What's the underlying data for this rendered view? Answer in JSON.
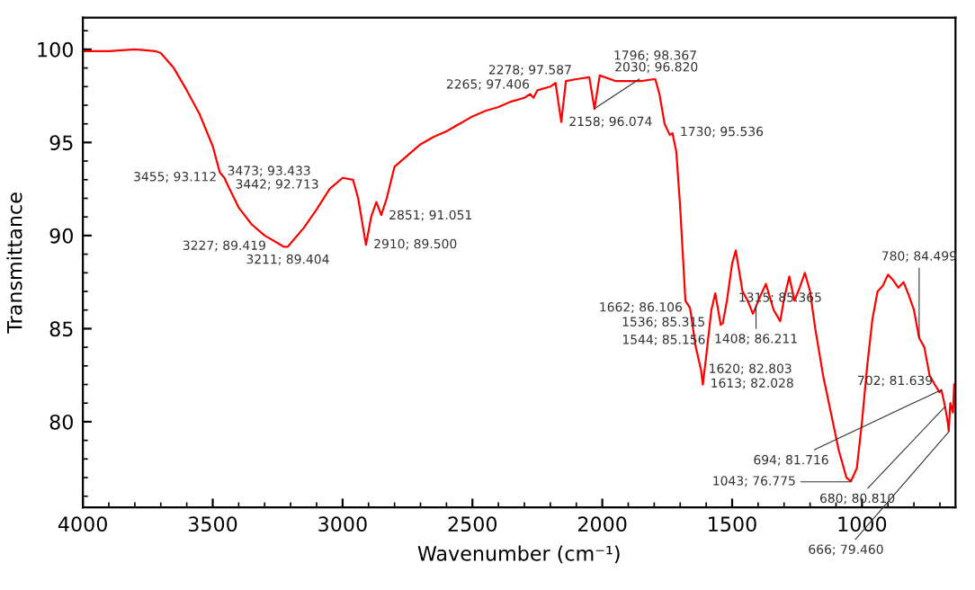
{
  "chart_data": {
    "type": "line",
    "xlabel": "Wavenumber (cm⁻¹)",
    "ylabel": "Transmittance",
    "x": [
      4000,
      3900,
      3800,
      3720,
      3700,
      3650,
      3600,
      3550,
      3500,
      3473,
      3455,
      3442,
      3400,
      3350,
      3300,
      3250,
      3227,
      3211,
      3150,
      3100,
      3050,
      3000,
      2960,
      2940,
      2910,
      2890,
      2870,
      2851,
      2830,
      2800,
      2750,
      2700,
      2650,
      2600,
      2550,
      2500,
      2450,
      2400,
      2350,
      2300,
      2278,
      2265,
      2250,
      2200,
      2180,
      2158,
      2140,
      2100,
      2050,
      2030,
      2010,
      1950,
      1900,
      1850,
      1800,
      1796,
      1780,
      1760,
      1740,
      1730,
      1715,
      1700,
      1680,
      1662,
      1640,
      1620,
      1613,
      1600,
      1580,
      1565,
      1544,
      1536,
      1520,
      1500,
      1486,
      1460,
      1440,
      1420,
      1408,
      1390,
      1370,
      1340,
      1315,
      1300,
      1280,
      1260,
      1240,
      1220,
      1200,
      1180,
      1150,
      1120,
      1090,
      1060,
      1043,
      1020,
      1000,
      980,
      960,
      940,
      920,
      900,
      880,
      860,
      840,
      820,
      800,
      780,
      760,
      740,
      720,
      702,
      694,
      680,
      670,
      666,
      660,
      650,
      645
    ],
    "series": [
      {
        "color": "#ff0000",
        "values": [
          99.9,
          99.9,
          100.0,
          99.9,
          99.8,
          99.0,
          97.8,
          96.5,
          94.8,
          93.4,
          93.1,
          92.7,
          91.5,
          90.6,
          90.0,
          89.6,
          89.4,
          89.4,
          90.4,
          91.4,
          92.5,
          93.1,
          93.0,
          92.0,
          89.5,
          91.0,
          91.8,
          91.1,
          92.0,
          93.7,
          94.3,
          94.9,
          95.3,
          95.6,
          96.0,
          96.4,
          96.7,
          96.9,
          97.2,
          97.4,
          97.6,
          97.4,
          97.8,
          98.0,
          98.2,
          96.1,
          98.3,
          98.4,
          98.5,
          96.8,
          98.6,
          98.3,
          98.3,
          98.3,
          98.4,
          98.4,
          97.6,
          96.0,
          95.4,
          95.5,
          94.5,
          91.5,
          86.5,
          86.1,
          84.0,
          82.8,
          82.0,
          83.5,
          86.0,
          86.9,
          85.2,
          85.3,
          86.5,
          88.5,
          89.2,
          87.0,
          86.5,
          85.8,
          86.2,
          86.8,
          87.4,
          86.0,
          85.4,
          86.6,
          87.8,
          86.5,
          87.2,
          88.0,
          87.0,
          85.0,
          82.5,
          80.5,
          78.5,
          77.0,
          76.8,
          77.5,
          80.0,
          83.0,
          85.5,
          87.0,
          87.3,
          87.9,
          87.6,
          87.2,
          87.5,
          86.8,
          86.0,
          84.5,
          84.0,
          82.5,
          82.0,
          81.6,
          81.7,
          80.8,
          80.0,
          79.5,
          81.0,
          80.5,
          82.0
        ]
      }
    ],
    "xlim": [
      4000,
      640
    ],
    "ylim": [
      75.4,
      101.7
    ],
    "xticks": [
      4000,
      3500,
      3000,
      2500,
      2000,
      1500,
      1000
    ],
    "yticks": [
      80,
      85,
      90,
      95,
      100
    ],
    "grid": false,
    "legend": false,
    "marker": "none",
    "line_style": "solid",
    "annotations": [
      {
        "text": "3473; 93.433",
        "x": 3473,
        "y": 93.433
      },
      {
        "text": "3455; 93.112",
        "x": 3455,
        "y": 93.112
      },
      {
        "text": "3442; 92.713",
        "x": 3442,
        "y": 92.713
      },
      {
        "text": "3211; 89.404",
        "x": 3211,
        "y": 89.404
      },
      {
        "text": "3227; 89.419",
        "x": 3227,
        "y": 89.419
      },
      {
        "text": "2910; 89.500",
        "x": 2910,
        "y": 89.5
      },
      {
        "text": "2851; 91.051",
        "x": 2851,
        "y": 91.051
      },
      {
        "text": "2265; 97.406",
        "x": 2265,
        "y": 97.406
      },
      {
        "text": "2278; 97.587",
        "x": 2278,
        "y": 97.587
      },
      {
        "text": "2158; 96.074",
        "x": 2158,
        "y": 96.074
      },
      {
        "text": "2030; 96.820",
        "x": 2030,
        "y": 96.82
      },
      {
        "text": "1796; 98.367",
        "x": 1796,
        "y": 98.367
      },
      {
        "text": "1730; 95.536",
        "x": 1730,
        "y": 95.536
      },
      {
        "text": "1662; 86.106",
        "x": 1662,
        "y": 86.106
      },
      {
        "text": "1408; 86.211",
        "x": 1408,
        "y": 86.211
      },
      {
        "text": "1315; 85.365",
        "x": 1315,
        "y": 85.365
      },
      {
        "text": "1536; 85.315",
        "x": 1536,
        "y": 85.315
      },
      {
        "text": "1544; 85.156",
        "x": 1544,
        "y": 85.156
      },
      {
        "text": "1620; 82.803",
        "x": 1620,
        "y": 82.803
      },
      {
        "text": "1613; 82.028",
        "x": 1613,
        "y": 82.028
      },
      {
        "text": "780; 84.499",
        "x": 780,
        "y": 84.499
      },
      {
        "text": "694; 81.716",
        "x": 694,
        "y": 81.716
      },
      {
        "text": "702; 81.639",
        "x": 702,
        "y": 81.639
      },
      {
        "text": "680; 80.810",
        "x": 680,
        "y": 80.81
      },
      {
        "text": "666; 79.460",
        "x": 666,
        "y": 79.46
      },
      {
        "text": "1043; 76.775",
        "x": 1043,
        "y": 76.775
      }
    ]
  }
}
